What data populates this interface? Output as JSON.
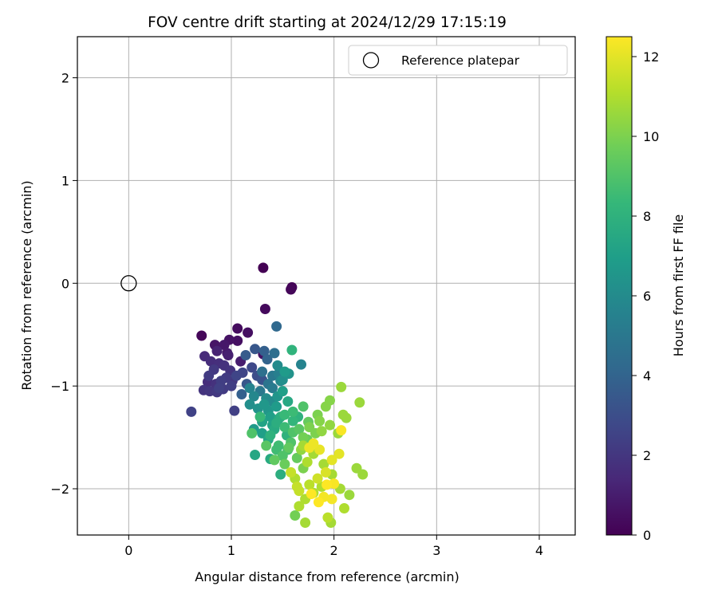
{
  "chart_data": {
    "type": "scatter",
    "title": "FOV centre drift starting at 2024/12/29 17:15:19",
    "xlabel": "Angular distance from reference (arcmin)",
    "ylabel": "Rotation from reference (arcmin)",
    "xlim": [
      -0.5,
      4.35
    ],
    "ylim": [
      -2.45,
      2.4
    ],
    "xticks": [
      0,
      1,
      2,
      3,
      4
    ],
    "yticks": [
      -2,
      -1,
      0,
      1,
      2
    ],
    "xtick_labels": [
      "0",
      "1",
      "2",
      "3",
      "4"
    ],
    "ytick_labels": [
      "−2",
      "−1",
      "0",
      "1",
      "2"
    ],
    "grid": true,
    "legend": {
      "entries": [
        "Reference platepar"
      ],
      "placement": "top-right"
    },
    "reference_point": {
      "name": "Reference platepar",
      "x": 0,
      "y": 0,
      "marker": "open-circle",
      "color": "#000000"
    },
    "colorbar": {
      "label": "Hours from first FF file",
      "min": 0,
      "max": 12.5,
      "ticks": [
        0,
        2,
        4,
        6,
        8,
        10,
        12
      ],
      "tick_labels": [
        "0",
        "2",
        "4",
        "6",
        "8",
        "10",
        "12"
      ],
      "colormap": "viridis",
      "colors": [
        "#440154",
        "#482878",
        "#3e4989",
        "#31688e",
        "#26828e",
        "#1f9e89",
        "#35b779",
        "#6ece58",
        "#b5de2b",
        "#fde725"
      ]
    },
    "series": [
      {
        "values": [
          [
            1.31,
            0.15,
            0.0
          ],
          [
            1.59,
            -0.04,
            0.1
          ],
          [
            1.58,
            -0.06,
            0.2
          ],
          [
            1.33,
            -0.25,
            0.3
          ],
          [
            0.71,
            -0.51,
            0.2
          ],
          [
            1.06,
            -0.44,
            0.4
          ],
          [
            1.16,
            -0.48,
            0.5
          ],
          [
            0.98,
            -0.55,
            0.6
          ],
          [
            1.06,
            -0.56,
            0.5
          ],
          [
            0.84,
            -0.6,
            0.7
          ],
          [
            0.93,
            -0.6,
            0.8
          ],
          [
            0.96,
            -0.68,
            0.9
          ],
          [
            1.31,
            -0.69,
            0.6
          ],
          [
            1.09,
            -0.76,
            1.0
          ],
          [
            0.86,
            -0.66,
            1.2
          ],
          [
            0.74,
            -0.71,
            1.5
          ],
          [
            0.8,
            -0.76,
            1.6
          ],
          [
            0.88,
            -0.78,
            1.7
          ],
          [
            0.93,
            -0.8,
            1.8
          ],
          [
            0.99,
            -0.85,
            1.9
          ],
          [
            1.01,
            -0.95,
            2.0
          ],
          [
            0.83,
            -0.84,
            2.1
          ],
          [
            0.78,
            -0.9,
            2.2
          ],
          [
            0.9,
            -0.95,
            2.3
          ],
          [
            0.73,
            -1.04,
            1.9
          ],
          [
            0.79,
            -1.05,
            2.0
          ],
          [
            0.86,
            -1.06,
            2.1
          ],
          [
            0.92,
            -1.03,
            2.2
          ],
          [
            1.0,
            -1.0,
            2.3
          ],
          [
            1.03,
            -1.24,
            2.4
          ],
          [
            0.61,
            -1.25,
            2.5
          ],
          [
            1.11,
            -0.87,
            2.6
          ],
          [
            1.2,
            -0.82,
            2.8
          ],
          [
            1.25,
            -0.9,
            3.0
          ],
          [
            1.3,
            -0.94,
            3.2
          ],
          [
            1.23,
            -0.64,
            3.4
          ],
          [
            1.14,
            -0.7,
            3.6
          ],
          [
            1.32,
            -0.66,
            3.8
          ],
          [
            1.35,
            -0.74,
            4.0
          ],
          [
            1.44,
            -0.42,
            4.2
          ],
          [
            1.42,
            -0.68,
            4.5
          ],
          [
            1.3,
            -0.86,
            4.6
          ],
          [
            1.36,
            -0.98,
            4.8
          ],
          [
            1.28,
            -1.05,
            5.0
          ],
          [
            1.4,
            -1.02,
            5.2
          ],
          [
            1.46,
            -0.88,
            5.4
          ],
          [
            1.68,
            -0.79,
            5.6
          ],
          [
            1.18,
            -1.02,
            5.6
          ],
          [
            1.22,
            -1.1,
            5.8
          ],
          [
            1.34,
            -1.12,
            6.0
          ],
          [
            1.5,
            -0.94,
            6.2
          ],
          [
            1.56,
            -0.88,
            6.4
          ],
          [
            1.18,
            -1.18,
            6.2
          ],
          [
            1.26,
            -1.22,
            6.4
          ],
          [
            1.36,
            -1.24,
            6.6
          ],
          [
            1.44,
            -1.2,
            6.8
          ],
          [
            1.22,
            -1.42,
            6.8
          ],
          [
            1.3,
            -1.46,
            7.0
          ],
          [
            1.4,
            -1.38,
            7.2
          ],
          [
            1.46,
            -1.32,
            7.4
          ],
          [
            1.23,
            -1.67,
            7.4
          ],
          [
            1.38,
            -1.71,
            7.6
          ],
          [
            1.48,
            -1.86,
            7.8
          ],
          [
            1.54,
            -1.48,
            8.0
          ],
          [
            1.59,
            -0.65,
            8.1
          ],
          [
            1.6,
            -1.34,
            8.2
          ],
          [
            1.28,
            -1.3,
            8.4
          ],
          [
            1.46,
            -1.58,
            8.6
          ],
          [
            1.55,
            -1.62,
            8.8
          ],
          [
            1.6,
            -1.45,
            9.0
          ],
          [
            1.2,
            -1.46,
            9.0
          ],
          [
            1.34,
            -1.58,
            9.2
          ],
          [
            1.42,
            -1.72,
            9.4
          ],
          [
            1.52,
            -1.76,
            9.6
          ],
          [
            1.62,
            -2.26,
            9.8
          ],
          [
            1.7,
            -1.5,
            9.8
          ],
          [
            1.76,
            -1.4,
            10.0
          ],
          [
            1.84,
            -1.28,
            10.0
          ],
          [
            1.92,
            -1.2,
            10.2
          ],
          [
            1.96,
            -1.14,
            10.2
          ],
          [
            1.88,
            -1.44,
            10.4
          ],
          [
            1.96,
            -1.38,
            10.4
          ],
          [
            2.04,
            -1.46,
            10.6
          ],
          [
            2.07,
            -1.01,
            10.6
          ],
          [
            2.25,
            -1.16,
            10.6
          ],
          [
            2.12,
            -1.31,
            10.6
          ],
          [
            2.09,
            -1.28,
            10.6
          ],
          [
            2.22,
            -1.8,
            10.6
          ],
          [
            2.28,
            -1.86,
            10.6
          ],
          [
            2.15,
            -2.06,
            10.6
          ],
          [
            2.06,
            -2.0,
            10.8
          ],
          [
            1.98,
            -1.86,
            10.8
          ],
          [
            1.9,
            -1.76,
            10.8
          ],
          [
            1.8,
            -1.66,
            10.8
          ],
          [
            1.7,
            -1.58,
            10.8
          ],
          [
            1.72,
            -2.33,
            10.8
          ],
          [
            1.97,
            -2.33,
            10.8
          ],
          [
            2.1,
            -2.19,
            11.0
          ],
          [
            1.66,
            -2.17,
            11.0
          ],
          [
            1.72,
            -2.1,
            11.0
          ],
          [
            1.8,
            -2.04,
            11.0
          ],
          [
            1.88,
            -1.98,
            11.0
          ],
          [
            1.94,
            -2.28,
            11.2
          ],
          [
            1.76,
            -1.96,
            11.2
          ],
          [
            1.64,
            -1.98,
            11.4
          ],
          [
            1.58,
            -1.84,
            11.4
          ],
          [
            1.84,
            -1.9,
            11.6
          ],
          [
            1.92,
            -1.84,
            11.8
          ],
          [
            1.98,
            -1.72,
            12.0
          ],
          [
            2.05,
            -1.66,
            12.0
          ],
          [
            1.86,
            -1.62,
            12.1
          ],
          [
            1.8,
            -1.56,
            12.2
          ],
          [
            1.76,
            -1.6,
            12.2
          ],
          [
            1.9,
            -2.08,
            12.3
          ],
          [
            1.98,
            -2.1,
            12.3
          ],
          [
            2.07,
            -1.43,
            12.4
          ],
          [
            2.0,
            -1.95,
            12.4
          ],
          [
            1.85,
            -2.13,
            12.5
          ],
          [
            1.93,
            -1.96,
            12.5
          ],
          [
            1.78,
            -2.05,
            12.5
          ],
          [
            1.55,
            -1.15,
            7.5
          ],
          [
            1.5,
            -1.05,
            7.0
          ],
          [
            1.45,
            -1.1,
            6.5
          ],
          [
            1.4,
            -1.15,
            6.0
          ],
          [
            1.6,
            -1.25,
            8.5
          ],
          [
            1.65,
            -1.3,
            8.0
          ],
          [
            1.7,
            -1.2,
            9.0
          ],
          [
            1.75,
            -1.35,
            9.5
          ],
          [
            1.52,
            -1.4,
            8.5
          ],
          [
            1.58,
            -1.55,
            9.0
          ],
          [
            1.64,
            -1.7,
            9.5
          ],
          [
            1.7,
            -1.8,
            10.0
          ],
          [
            1.48,
            -1.3,
            7.8
          ],
          [
            1.42,
            -1.42,
            7.6
          ],
          [
            1.36,
            -1.52,
            7.4
          ],
          [
            1.3,
            -1.35,
            7.2
          ],
          [
            1.66,
            -1.42,
            9.2
          ],
          [
            1.74,
            -1.52,
            9.6
          ],
          [
            1.82,
            -1.46,
            10.0
          ],
          [
            1.86,
            -1.34,
            10.2
          ],
          [
            1.68,
            -1.62,
            10.4
          ],
          [
            1.62,
            -1.9,
            11.0
          ],
          [
            1.66,
            -2.02,
            11.4
          ],
          [
            1.74,
            -1.74,
            11.0
          ],
          [
            1.52,
            -1.28,
            8.4
          ],
          [
            1.44,
            -1.36,
            7.8
          ],
          [
            1.38,
            -1.3,
            7.0
          ],
          [
            1.32,
            -1.18,
            6.6
          ],
          [
            1.56,
            -1.6,
            9.4
          ],
          [
            1.5,
            -1.68,
            9.0
          ],
          [
            1.44,
            -1.62,
            8.6
          ],
          [
            1.38,
            -1.48,
            8.0
          ],
          [
            0.95,
            -0.92,
            2.2
          ],
          [
            1.05,
            -0.9,
            2.6
          ],
          [
            1.15,
            -0.98,
            3.4
          ],
          [
            1.1,
            -1.08,
            3.8
          ],
          [
            0.85,
            -0.98,
            1.8
          ],
          [
            0.77,
            -0.96,
            1.6
          ],
          [
            0.88,
            -1.02,
            2.4
          ],
          [
            0.97,
            -0.7,
            1.1
          ],
          [
            1.45,
            -0.8,
            6.0
          ],
          [
            1.52,
            -0.86,
            6.8
          ],
          [
            1.48,
            -0.95,
            5.8
          ],
          [
            1.4,
            -0.9,
            5.0
          ]
        ]
      }
    ]
  }
}
